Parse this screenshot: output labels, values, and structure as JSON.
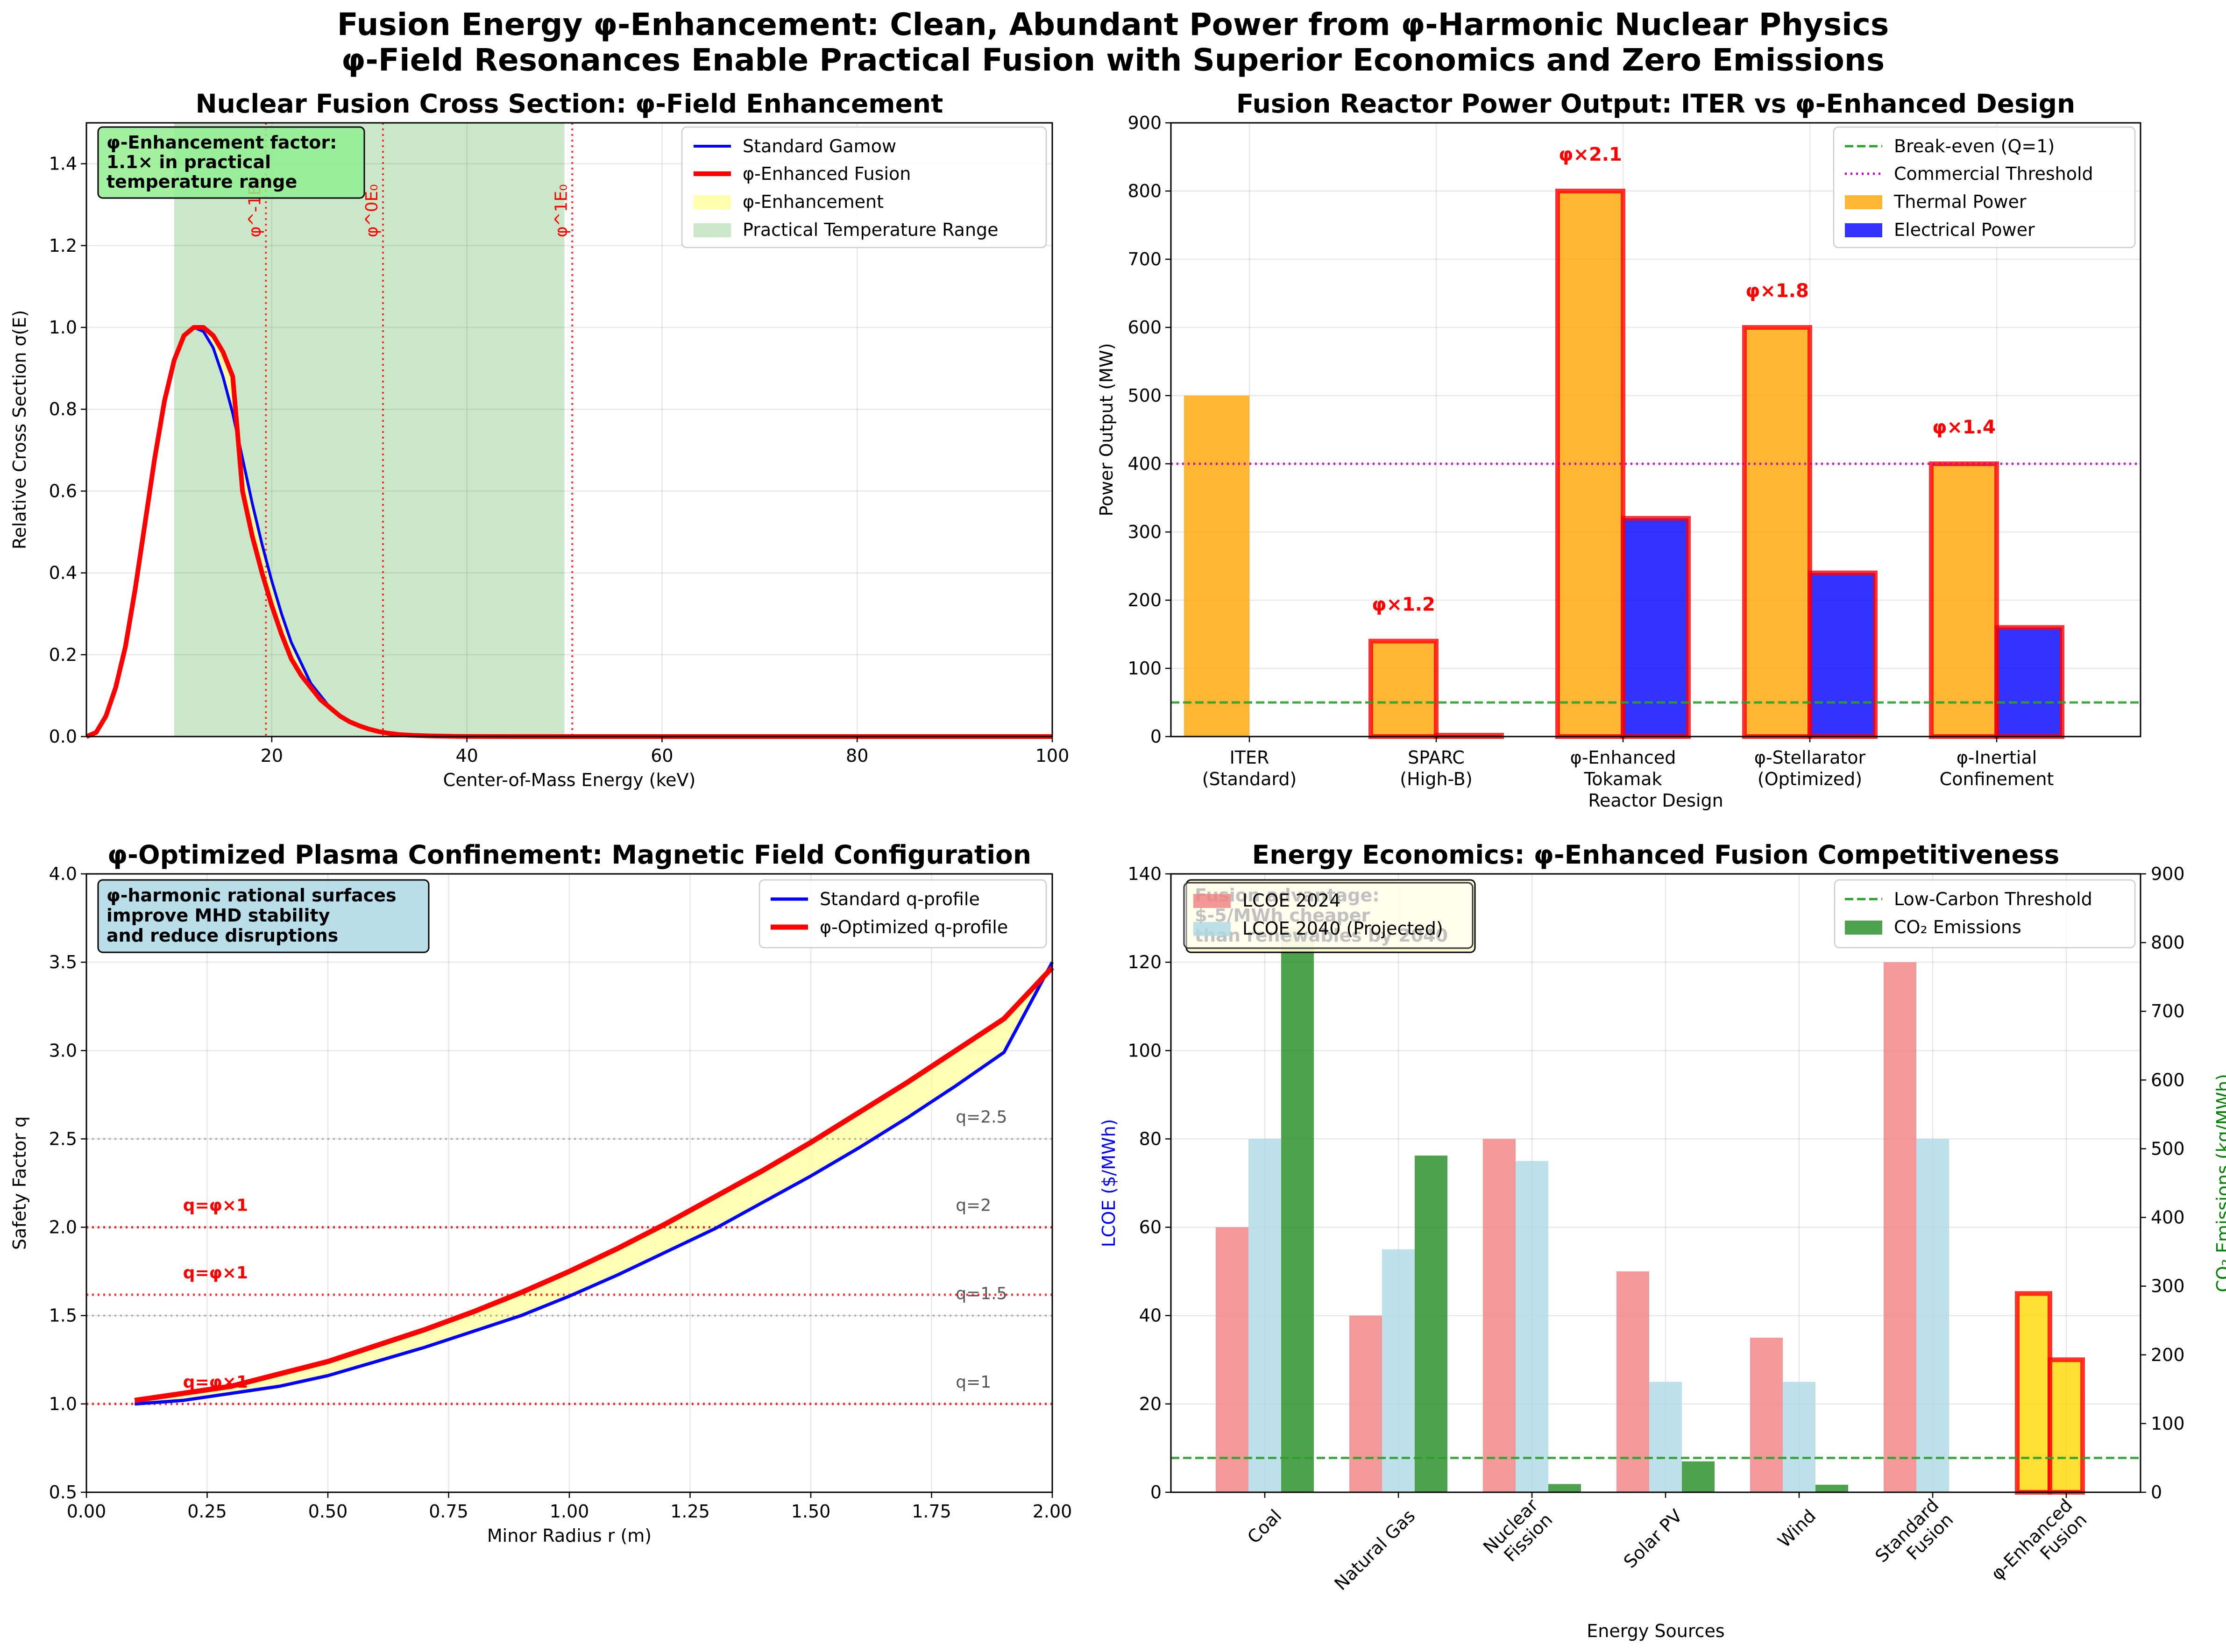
{
  "figure": {
    "title_line1": "Fusion Energy φ-Enhancement: Clean, Abundant Power from φ-Harmonic Nuclear Physics",
    "title_line2": "φ-Field Resonances Enable Practical Fusion with Superior Economics and Zero Emissions"
  },
  "chart_data": [
    {
      "type": "line",
      "title": "Nuclear Fusion Cross Section: φ-Field Enhancement",
      "xlabel": "Center-of-Mass Energy (keV)",
      "ylabel": "Relative Cross Section σ(E)",
      "xlim": [
        1,
        100
      ],
      "ylim": [
        0,
        1.5
      ],
      "xticks": [
        20,
        40,
        60,
        80,
        100
      ],
      "yticks": [
        0.0,
        0.2,
        0.4,
        0.6,
        0.8,
        1.0,
        1.2,
        1.4
      ],
      "grid": true,
      "legend_position": "top-right",
      "x": [
        1,
        2,
        3,
        4,
        5,
        6,
        7,
        8,
        9,
        10,
        11,
        12,
        13,
        14,
        15,
        16,
        17,
        18,
        19,
        20,
        21,
        22,
        23,
        24,
        25,
        26,
        27,
        28,
        29,
        30,
        31,
        32,
        33,
        34,
        35,
        36,
        37,
        38,
        39,
        40,
        42,
        45,
        50,
        60,
        70,
        80,
        90,
        100
      ],
      "series": [
        {
          "name": "Standard Gamow",
          "color": "#0000ff",
          "values": [
            0.0,
            0.01,
            0.05,
            0.12,
            0.22,
            0.36,
            0.52,
            0.68,
            0.82,
            0.92,
            0.98,
            1.0,
            0.99,
            0.95,
            0.88,
            0.79,
            0.68,
            0.57,
            0.47,
            0.38,
            0.3,
            0.23,
            0.18,
            0.13,
            0.1,
            0.07,
            0.05,
            0.035,
            0.025,
            0.017,
            0.012,
            0.008,
            0.005,
            0.0035,
            0.0025,
            0.0017,
            0.0012,
            0.0008,
            0.0005,
            0.0003,
            0.0001,
            0.0,
            0.0,
            0.0,
            0.0,
            0.0,
            0.0,
            0.0
          ]
        },
        {
          "name": "φ-Enhanced Fusion",
          "color": "#ff0000",
          "values": [
            0.0,
            0.01,
            0.05,
            0.12,
            0.22,
            0.36,
            0.52,
            0.68,
            0.82,
            0.92,
            0.98,
            1.0,
            1.0,
            0.98,
            0.94,
            0.88,
            0.6,
            0.49,
            0.4,
            0.32,
            0.25,
            0.19,
            0.15,
            0.12,
            0.09,
            0.07,
            0.05,
            0.036,
            0.026,
            0.018,
            0.012,
            0.008,
            0.005,
            0.0035,
            0.0025,
            0.0017,
            0.0012,
            0.0008,
            0.0005,
            0.0003,
            0.0001,
            0.0,
            0.0,
            0.0,
            0.0,
            0.0,
            0.0,
            0.0
          ]
        }
      ],
      "fill_label": "φ-Enhancement",
      "fill_color": "#ffff99",
      "span_label": "Practical Temperature Range",
      "span_range": [
        10,
        50
      ],
      "span_color": "#2ca02c",
      "vlines": [
        {
          "x": 19.4,
          "label": "φ^-1E₀"
        },
        {
          "x": 31.4,
          "label": "φ^0E₀"
        },
        {
          "x": 50.8,
          "label": "φ^1E₀"
        }
      ],
      "annotation": {
        "line1": "φ-Enhancement factor:",
        "line2": "1.1× in practical",
        "line3": "temperature range"
      }
    },
    {
      "type": "bar",
      "title": "Fusion Reactor Power Output: ITER vs φ-Enhanced Design",
      "xlabel": "Reactor Design",
      "ylabel": "Power Output (MW)",
      "ylim": [
        0,
        900
      ],
      "yticks": [
        0,
        100,
        200,
        300,
        400,
        500,
        600,
        700,
        800,
        900
      ],
      "grid": true,
      "legend_position": "top-right",
      "categories": [
        {
          "line1": "ITER",
          "line2": "(Standard)"
        },
        {
          "line1": "SPARC",
          "line2": "(High-B)"
        },
        {
          "line1": "φ-Enhanced",
          "line2": "Tokamak"
        },
        {
          "line1": "φ-Stellarator",
          "line2": "(Optimized)"
        },
        {
          "line1": "φ-Inertial",
          "line2": "Confinement"
        }
      ],
      "series": [
        {
          "name": "Thermal Power",
          "color": "#ffa500",
          "values": [
            500,
            140,
            800,
            600,
            400
          ]
        },
        {
          "name": "Electrical Power",
          "color": "#0000ff",
          "values": [
            0,
            2,
            320,
            240,
            160
          ]
        }
      ],
      "highlighted": [
        false,
        true,
        true,
        true,
        true
      ],
      "multipliers": [
        "",
        "φ×1.2",
        "φ×2.1",
        "φ×1.8",
        "φ×1.4"
      ],
      "hlines": [
        {
          "y": 50,
          "name": "Break-even (Q=1)",
          "color": "#2ca02c",
          "style": "dashed"
        },
        {
          "y": 400,
          "name": "Commercial Threshold",
          "color": "#bf00bf",
          "style": "dotted"
        }
      ]
    },
    {
      "type": "line",
      "title": "φ-Optimized Plasma Confinement: Magnetic Field Configuration",
      "xlabel": "Minor Radius r (m)",
      "ylabel": "Safety Factor q",
      "xlim": [
        0.0,
        2.0
      ],
      "ylim": [
        0.5,
        4.0
      ],
      "xticks": [
        "0.00",
        "0.25",
        "0.50",
        "0.75",
        "1.00",
        "1.25",
        "1.50",
        "1.75",
        "2.00"
      ],
      "yticks": [
        "0.5",
        "1.0",
        "1.5",
        "2.0",
        "2.5",
        "3.0",
        "3.5",
        "4.0"
      ],
      "grid": true,
      "legend_position": "top-right",
      "x": [
        0.1,
        0.2,
        0.3,
        0.4,
        0.5,
        0.6,
        0.7,
        0.8,
        0.9,
        1.0,
        1.1,
        1.2,
        1.3,
        1.4,
        1.5,
        1.6,
        1.7,
        1.8,
        1.9,
        2.0
      ],
      "series": [
        {
          "name": "Standard q-profile",
          "color": "#0000ff",
          "values": [
            1.0,
            1.02,
            1.06,
            1.1,
            1.16,
            1.24,
            1.32,
            1.41,
            1.5,
            1.61,
            1.73,
            1.86,
            1.99,
            2.14,
            2.29,
            2.45,
            2.62,
            2.8,
            2.99,
            3.5
          ]
        },
        {
          "name": "φ-Optimized q-profile",
          "color": "#ff0000",
          "values": [
            1.02,
            1.06,
            1.1,
            1.17,
            1.24,
            1.33,
            1.42,
            1.52,
            1.63,
            1.75,
            1.88,
            2.02,
            2.17,
            2.32,
            2.48,
            2.65,
            2.82,
            3.0,
            3.18,
            3.47
          ]
        }
      ],
      "rational_surfaces": [
        {
          "q": 1.0,
          "label": "q=1"
        },
        {
          "q": 1.5,
          "label": "q=1.5"
        },
        {
          "q": 2.0,
          "label": "q=2"
        },
        {
          "q": 2.5,
          "label": "q=2.5"
        }
      ],
      "phi_surfaces": [
        {
          "q": 1.0,
          "label": "q=φ×1"
        },
        {
          "q": 1.618,
          "label": "q=φ×1"
        },
        {
          "q": 2.0,
          "label": "q=φ×1"
        }
      ],
      "annotation": {
        "line1": "φ-harmonic rational surfaces",
        "line2": "improve MHD stability",
        "line3": "and reduce disruptions"
      }
    },
    {
      "type": "bar",
      "title": "Energy Economics: φ-Enhanced Fusion Competitiveness",
      "xlabel": "Energy Sources",
      "ylabel": "LCOE ($/MWh)",
      "ylabel_right": "CO₂ Emissions (kg/MWh)",
      "ylim": [
        0,
        140
      ],
      "ylim_right": [
        0,
        900
      ],
      "yticks": [
        0,
        20,
        40,
        60,
        80,
        100,
        120,
        140
      ],
      "yticks_right": [
        0,
        100,
        200,
        300,
        400,
        500,
        600,
        700,
        800,
        900
      ],
      "grid": true,
      "categories": [
        {
          "line1": "Coal",
          "line2": ""
        },
        {
          "line1": "Natural Gas",
          "line2": ""
        },
        {
          "line1": "Nuclear",
          "line2": "Fission"
        },
        {
          "line1": "Solar PV",
          "line2": ""
        },
        {
          "line1": "Wind",
          "line2": ""
        },
        {
          "line1": "Standard",
          "line2": "Fusion"
        },
        {
          "line1": "φ-Enhanced",
          "line2": "Fusion"
        }
      ],
      "series": [
        {
          "name": "LCOE 2024",
          "color": "#f08080",
          "axis": "left",
          "values": [
            60,
            40,
            80,
            50,
            35,
            120,
            45
          ]
        },
        {
          "name": "LCOE 2040 (Projected)",
          "color": "#add8e6",
          "axis": "left",
          "values": [
            80,
            55,
            75,
            25,
            25,
            80,
            30
          ]
        },
        {
          "name": "CO₂ Emissions",
          "color": "#228b22",
          "axis": "right",
          "values": [
            820,
            490,
            12,
            45,
            11,
            0,
            0
          ]
        }
      ],
      "highlight_color": "#ffd700",
      "hlines": [
        {
          "y": 50,
          "axis": "right",
          "name": "Low-Carbon Threshold",
          "color": "#2ca02c",
          "style": "dashed"
        }
      ],
      "annotation": {
        "line1": "Fusion advantage:",
        "line2": "$-5/MWh cheaper",
        "line3": "than renewables by 2040"
      }
    }
  ]
}
